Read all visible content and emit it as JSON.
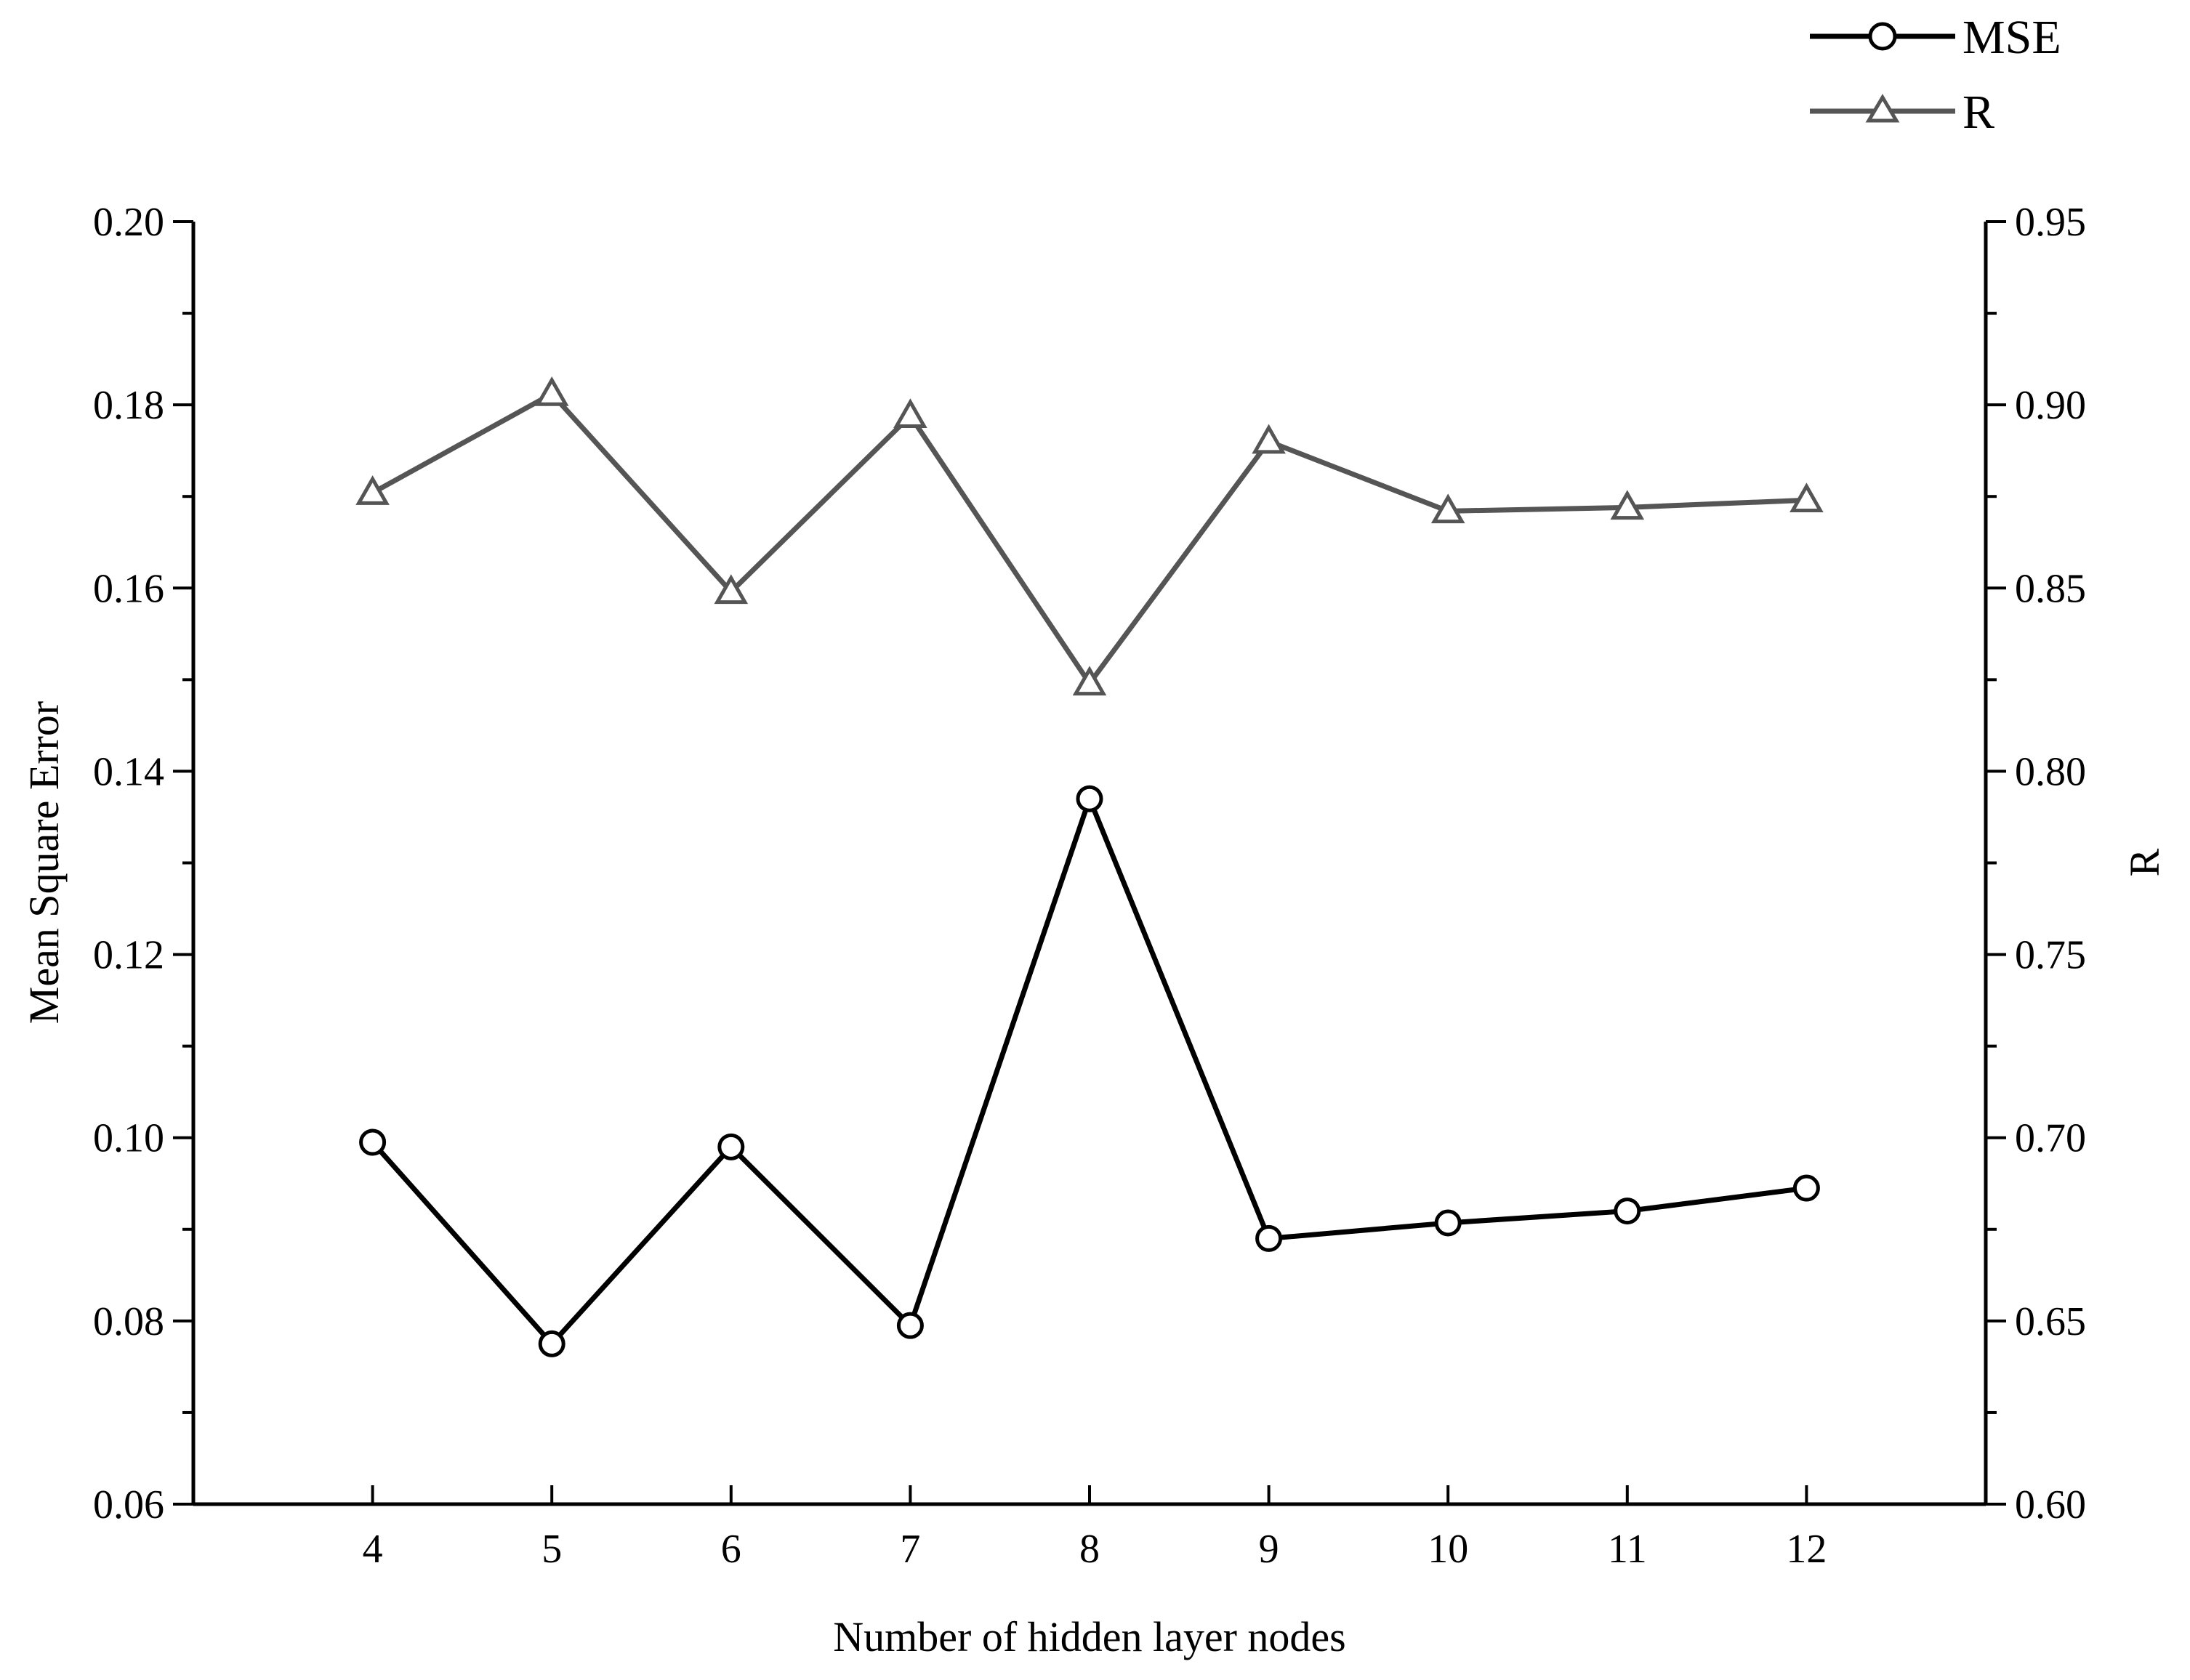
{
  "chart_data": {
    "type": "line",
    "x": [
      4,
      5,
      6,
      7,
      8,
      9,
      10,
      11,
      12
    ],
    "xlabel": "Number of hidden layer nodes",
    "ylabel_left": "Mean Square Error",
    "ylabel_right": "R",
    "x_ticks": [
      "4",
      "5",
      "6",
      "7",
      "8",
      "9",
      "10",
      "11",
      "12"
    ],
    "xlim": [
      3,
      13
    ],
    "ylim_left": [
      0.06,
      0.2
    ],
    "ylim_right": [
      0.6,
      0.95
    ],
    "y_ticks_left": [
      "0.06",
      "0.08",
      "0.10",
      "0.12",
      "0.14",
      "0.16",
      "0.18",
      "0.20"
    ],
    "y_ticks_right": [
      "0.60",
      "0.65",
      "0.70",
      "0.75",
      "0.80",
      "0.85",
      "0.90",
      "0.95"
    ],
    "grid": false,
    "legend_position": "top-right",
    "series": [
      {
        "name": "MSE",
        "axis": "left",
        "marker": "circle",
        "color": "#000000",
        "values": [
          0.0995,
          0.0775,
          0.099,
          0.0795,
          0.137,
          0.089,
          0.0907,
          0.092,
          0.0945
        ]
      },
      {
        "name": "R",
        "axis": "right",
        "marker": "triangle",
        "color": "#555555",
        "values": [
          0.876,
          0.903,
          0.849,
          0.897,
          0.824,
          0.89,
          0.871,
          0.872,
          0.874
        ]
      }
    ]
  }
}
